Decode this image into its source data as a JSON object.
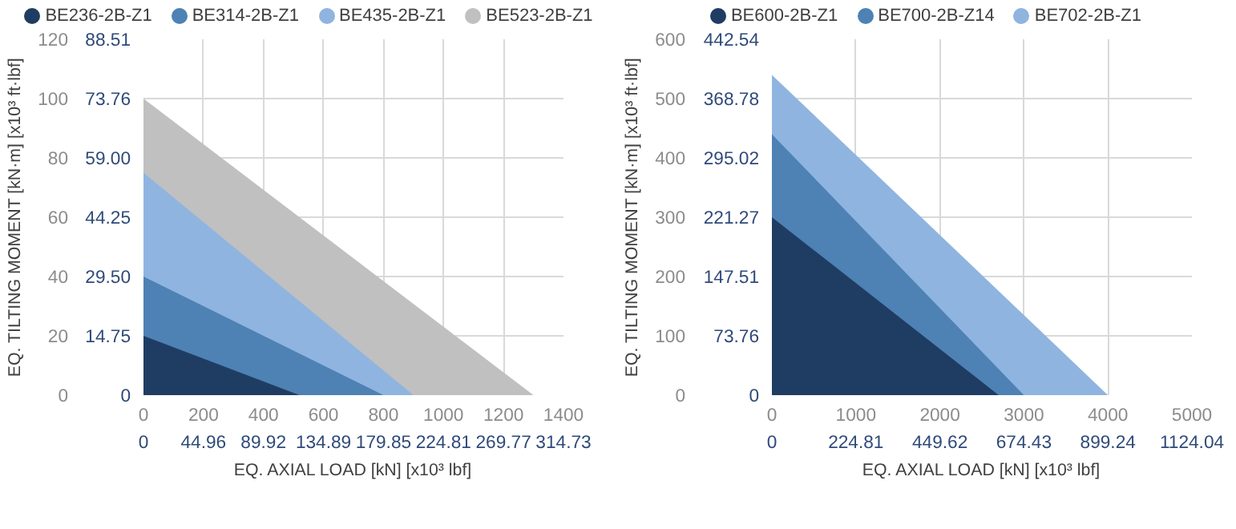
{
  "chart_data": [
    {
      "type": "area",
      "xlabel": "EQ. AXIAL LOAD [kN] [x10³ lbf]",
      "ylabel": "EQ. TILTING MOMENT [kN·m] [x10³ ft·lbf]",
      "legend": "top",
      "grid": true,
      "series": [
        {
          "name": "BE236-2B-Z1",
          "color": "#1f3d63",
          "x": [
            0,
            520
          ],
          "values": [
            20,
            0
          ]
        },
        {
          "name": "BE314-2B-Z1",
          "color": "#4e81b4",
          "x": [
            0,
            800
          ],
          "values": [
            40,
            0
          ]
        },
        {
          "name": "BE435-2B-Z1",
          "color": "#8fb4e0",
          "x": [
            0,
            900
          ],
          "values": [
            75,
            0
          ]
        },
        {
          "name": "BE523-2B-Z1",
          "color": "#c0c0c0",
          "x": [
            0,
            1300
          ],
          "values": [
            100,
            0
          ]
        }
      ],
      "xlim": [
        0,
        1400
      ],
      "xticks": [
        0,
        200,
        400,
        600,
        800,
        1000,
        1200,
        1400
      ],
      "ylim": [
        0,
        120
      ],
      "yticks": [
        0,
        20,
        40,
        60,
        80,
        100,
        120
      ],
      "x2lim": [
        0,
        314.73
      ],
      "x2ticks": [
        0,
        44.96,
        89.92,
        134.89,
        179.85,
        224.81,
        269.77,
        314.73
      ],
      "y2lim": [
        0,
        88.51
      ],
      "y2ticks": [
        0,
        14.75,
        {
          "value": 29.5,
          "label": "29.50"
        },
        44.25,
        {
          "value": 59.0,
          "label": "59.00"
        },
        73.76,
        88.51
      ]
    },
    {
      "type": "area",
      "xlabel": "EQ. AXIAL LOAD [kN] [x10³ lbf]",
      "ylabel": "EQ. TILTING MOMENT [kN·m] [x10³ ft·lbf]",
      "legend": "top",
      "grid": true,
      "series": [
        {
          "name": "BE600-2B-Z1",
          "color": "#1f3d63",
          "x": [
            0,
            2700
          ],
          "values": [
            300,
            0
          ]
        },
        {
          "name": "BE700-2B-Z14",
          "color": "#4e81b4",
          "x": [
            0,
            3000
          ],
          "values": [
            440,
            0
          ]
        },
        {
          "name": "BE702-2B-Z1",
          "color": "#8fb4e0",
          "x": [
            0,
            4000
          ],
          "values": [
            540,
            0
          ]
        }
      ],
      "xlim": [
        0,
        5000
      ],
      "xticks": [
        0,
        1000,
        2000,
        3000,
        4000,
        5000
      ],
      "ylim": [
        0,
        600
      ],
      "yticks": [
        0,
        100,
        200,
        300,
        400,
        500,
        600
      ],
      "x2lim": [
        0,
        1124.04
      ],
      "x2ticks": [
        0,
        224.81,
        449.62,
        674.43,
        899.24,
        1124.04
      ],
      "y2lim": [
        0,
        442.54
      ],
      "y2ticks": [
        0,
        73.76,
        147.51,
        221.27,
        295.02,
        368.78,
        442.54
      ]
    }
  ]
}
